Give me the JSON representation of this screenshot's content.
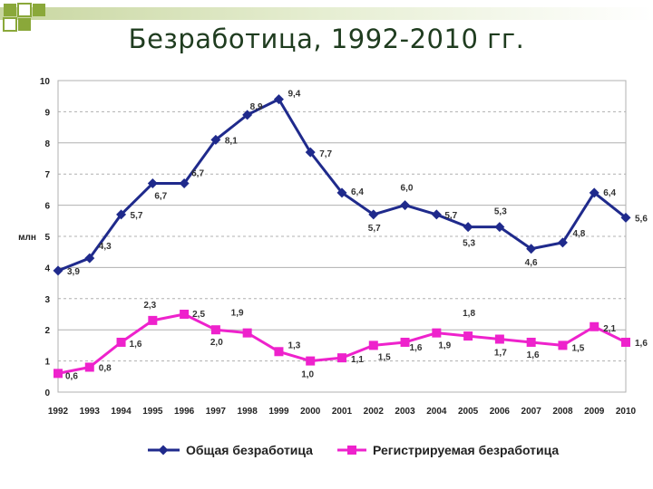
{
  "slide": {
    "title": "Безработица, 1992-2010 гг."
  },
  "colors": {
    "total": "#1f2a8c",
    "registered": "#ee22cc",
    "title": "#1f3c1f",
    "grid": "#b0b0b0",
    "deco_green": "#8aa83a"
  },
  "chart_data": {
    "type": "line",
    "title": "",
    "xlabel": "",
    "ylabel": "млн",
    "ylim": [
      0,
      10
    ],
    "yticks": [
      "0",
      "1",
      "2",
      "3",
      "4",
      "5",
      "6",
      "7",
      "8",
      "9",
      "10"
    ],
    "categories": [
      "1992",
      "1993",
      "1994",
      "1995",
      "1996",
      "1997",
      "1998",
      "1999",
      "2000",
      "2001",
      "2002",
      "2003",
      "2004",
      "2005",
      "2006",
      "2007",
      "2008",
      "2009",
      "2010"
    ],
    "series": [
      {
        "name": "Общая безработица",
        "values": [
          3.9,
          4.3,
          5.7,
          6.7,
          6.7,
          8.1,
          8.9,
          9.4,
          7.7,
          6.4,
          5.7,
          6.0,
          5.7,
          5.3,
          5.3,
          4.6,
          4.8,
          6.4,
          5.6
        ],
        "labels": [
          "3,9",
          "4,3",
          "5,7",
          "6,7",
          "6,7",
          "8,1",
          "8,9",
          "9,4",
          "7,7",
          "6,4",
          "5,7",
          "6,0",
          "5,7",
          "5,3",
          "5,3",
          "4,6",
          "4,8",
          "6,4",
          "5,6"
        ]
      },
      {
        "name": "Регистрируемая безработица",
        "values": [
          0.6,
          0.8,
          1.6,
          2.3,
          2.5,
          2.0,
          1.9,
          1.3,
          1.0,
          1.1,
          1.5,
          1.6,
          1.9,
          1.8,
          1.7,
          1.6,
          1.5,
          2.1,
          1.6
        ],
        "labels": [
          "0,6",
          "0,8",
          "1,6",
          "2,3",
          "2,5",
          "2,0",
          "1,9",
          "1,3",
          "1,0",
          "1,1",
          "1,5",
          "1,6",
          "1,9",
          "1,8",
          "1,7",
          "1,6",
          "1,5",
          "2,1",
          "1,6"
        ]
      }
    ],
    "gridlines": true,
    "legend": "bottom"
  }
}
